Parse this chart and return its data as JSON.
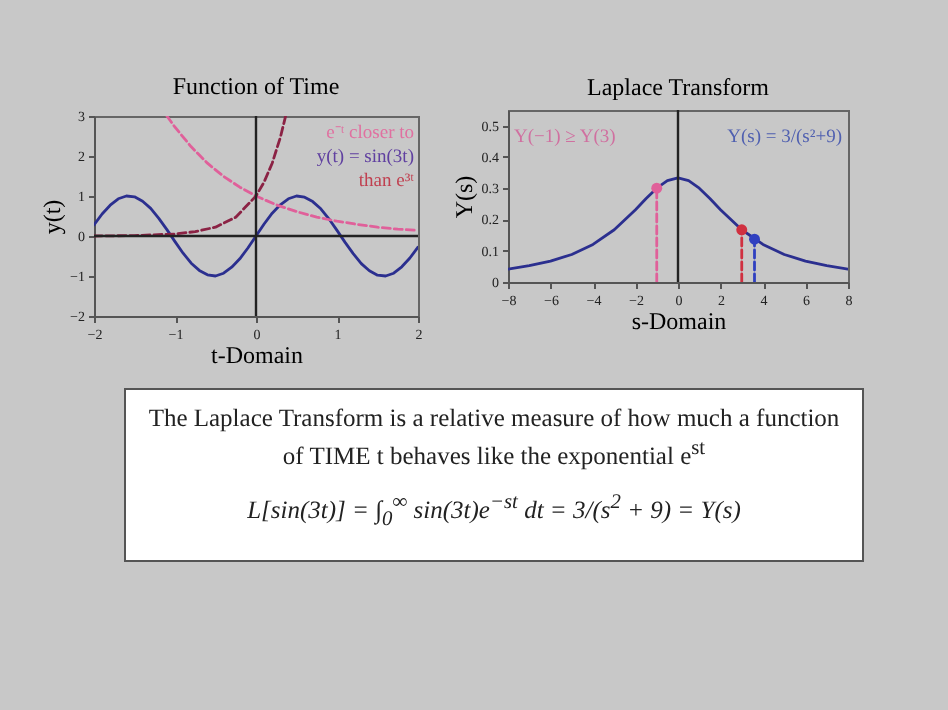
{
  "chart_data": [
    {
      "type": "line",
      "title": "Function of Time",
      "xlabel": "t-Domain",
      "ylabel": "y(t)",
      "xlim": [
        -2,
        2
      ],
      "xticks": [
        -2,
        -1,
        0,
        1,
        2
      ],
      "ylim": [
        -2,
        3
      ],
      "yticks": [
        -2,
        -1,
        0,
        1,
        2,
        3
      ],
      "grid": false,
      "annotations": [
        "e⁻ᵗ closer to",
        "y(t) = sin(3t)",
        "than e³ᵗ"
      ],
      "ref_lines": [
        {
          "axis": "x",
          "value": 0,
          "color": "#222222"
        },
        {
          "axis": "y",
          "value": 0,
          "color": "#222222"
        }
      ],
      "series": [
        {
          "color": "#2b2f8f",
          "line_style": "solid",
          "x": [
            -2,
            -1.9,
            -1.8,
            -1.7,
            -1.6,
            -1.5,
            -1.4,
            -1.3,
            -1.2,
            -1.1,
            -1,
            -0.9,
            -0.8,
            -0.7,
            -0.6,
            -0.5,
            -0.4,
            -0.3,
            -0.2,
            -0.1,
            0,
            0.1,
            0.2,
            0.3,
            0.4,
            0.5,
            0.6,
            0.7,
            0.8,
            0.9,
            1,
            1.1,
            1.2,
            1.3,
            1.4,
            1.5,
            1.6,
            1.7,
            1.8,
            1.9,
            2
          ],
          "values": [
            0.28,
            0.55,
            0.77,
            0.93,
            1.0,
            0.98,
            0.87,
            0.69,
            0.44,
            0.16,
            -0.14,
            -0.43,
            -0.68,
            -0.86,
            -0.97,
            -1.0,
            -0.93,
            -0.78,
            -0.57,
            -0.3,
            0,
            0.3,
            0.57,
            0.78,
            0.93,
            1.0,
            0.97,
            0.86,
            0.68,
            0.43,
            0.14,
            -0.16,
            -0.44,
            -0.69,
            -0.87,
            -0.98,
            -1.0,
            -0.93,
            -0.77,
            -0.55,
            -0.28
          ]
        },
        {
          "color": "#e0609a",
          "line_style": "dashed",
          "x": [
            -1.1,
            -1,
            -0.8,
            -0.6,
            -0.4,
            -0.2,
            0,
            0.25,
            0.5,
            0.75,
            1,
            1.25,
            1.5,
            1.75,
            2
          ],
          "values": [
            3.0,
            2.72,
            2.23,
            1.82,
            1.49,
            1.22,
            1.0,
            0.78,
            0.61,
            0.47,
            0.37,
            0.29,
            0.22,
            0.17,
            0.14
          ]
        },
        {
          "color": "#8b2244",
          "line_style": "dashed",
          "x": [
            -2,
            -1.5,
            -1,
            -0.75,
            -0.5,
            -0.25,
            0,
            0.1,
            0.2,
            0.3,
            0.366
          ],
          "values": [
            0.0,
            0.01,
            0.05,
            0.11,
            0.22,
            0.47,
            1.0,
            1.35,
            1.82,
            2.46,
            3.0
          ]
        }
      ]
    },
    {
      "type": "line",
      "title": "Laplace Transform",
      "xlabel": "s-Domain",
      "ylabel": "Y(s)",
      "xlim": [
        -8,
        8
      ],
      "xticks": [
        -8,
        -6,
        -4,
        -2,
        0,
        2,
        4,
        6,
        8
      ],
      "ylim": [
        0,
        0.55
      ],
      "yticks": [
        0,
        0.1,
        0.2,
        0.3,
        0.4,
        0.5
      ],
      "grid": false,
      "annotations": [
        "Y(−1) ≥ Y(3)",
        "Y(s) = 3/(s²+9)"
      ],
      "ref_lines": [
        {
          "axis": "x",
          "value": 0,
          "color": "#222222"
        }
      ],
      "series": [
        {
          "color": "#2b2f8f",
          "line_style": "solid",
          "x": [
            -8,
            -7,
            -6,
            -5,
            -4,
            -3,
            -2,
            -1.5,
            -1,
            -0.5,
            0,
            0.5,
            1,
            1.5,
            2,
            3,
            4,
            5,
            6,
            7,
            8
          ],
          "values": [
            0.041,
            0.052,
            0.067,
            0.088,
            0.12,
            0.167,
            0.231,
            0.267,
            0.3,
            0.324,
            0.333,
            0.324,
            0.3,
            0.267,
            0.231,
            0.167,
            0.12,
            0.088,
            0.067,
            0.052,
            0.041
          ]
        },
        {
          "color": "#e0609a",
          "line_style": "dashed",
          "x": [
            -1,
            -1
          ],
          "values": [
            0,
            0.3
          ]
        },
        {
          "color": "#d03040",
          "line_style": "dashed",
          "x": [
            3,
            3
          ],
          "values": [
            0,
            0.167
          ]
        },
        {
          "color": "#3040c0",
          "line_style": "dashed",
          "x": [
            3.6,
            3.6
          ],
          "values": [
            0,
            0.137
          ]
        },
        {
          "type": "scatter",
          "marker": "circle",
          "color": "#e0609a",
          "x": [
            -1
          ],
          "values": [
            0.3
          ]
        },
        {
          "type": "scatter",
          "marker": "circle",
          "color": "#d03040",
          "x": [
            3
          ],
          "values": [
            0.167
          ]
        },
        {
          "type": "scatter",
          "marker": "circle",
          "color": "#3040c0",
          "x": [
            3.6
          ],
          "values": [
            0.137
          ]
        }
      ]
    },
    {
      "type": "other",
      "annotations": [
        "The Laplace Transform is a relative measure of how much a function of TIME t behaves like the exponential e$^{st}$",
        "L[sin(3t)] = ∫$_{0}$$^{∞}$ sin(3t)e$^{−st}$ dt = 3/(s$^{2}$ + 9) = Y(s)"
      ]
    }
  ]
}
